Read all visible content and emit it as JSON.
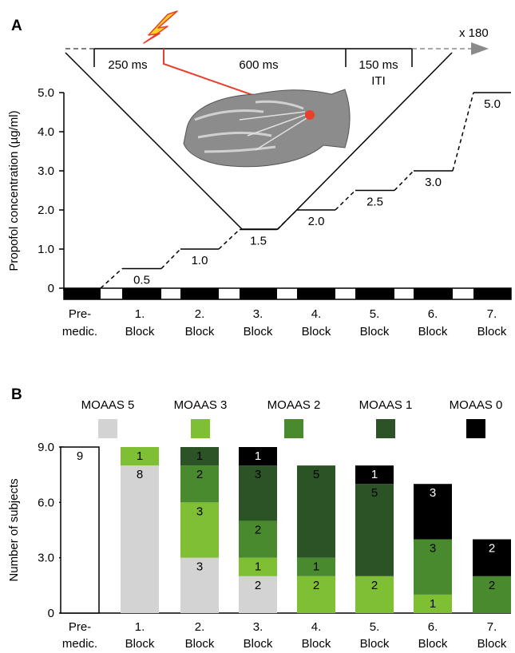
{
  "panel_a": {
    "label": "A",
    "trial": {
      "t1": "250 ms",
      "t2": "600 ms",
      "t3": "150 ms",
      "iti": "ITI",
      "repeat": "x 180"
    }
  },
  "panel_b": {
    "label": "B"
  },
  "colors": {
    "moaas5": "#d3d3d3",
    "moaas3": "#7fbf33",
    "moaas2": "#4a8a2f",
    "moaas1": "#2b5326",
    "moaas0": "#000000",
    "laser": "#e8402b",
    "arrow": "#8a8a8a"
  },
  "chart_data": [
    {
      "type": "line",
      "ylabel": "Propofol concentration (µg/ml)",
      "ylim": [
        0,
        5
      ],
      "yticks": [
        "0",
        "1.0",
        "2.0",
        "3.0",
        "4.0",
        "5.0"
      ],
      "categories": [
        [
          "Pre-",
          "medic."
        ],
        [
          "1.",
          "Block"
        ],
        [
          "2.",
          "Block"
        ],
        [
          "3.",
          "Block"
        ],
        [
          "4.",
          "Block"
        ],
        [
          "5.",
          "Block"
        ],
        [
          "6.",
          "Block"
        ],
        [
          "7.",
          "Block"
        ]
      ],
      "steps": [
        {
          "block": 1,
          "value": 0.5,
          "label": "0.5"
        },
        {
          "block": 2,
          "value": 1.0,
          "label": "1.0"
        },
        {
          "block": 3,
          "value": 1.5,
          "label": "1.5"
        },
        {
          "block": 4,
          "value": 2.0,
          "label": "2.0"
        },
        {
          "block": 5,
          "value": 2.5,
          "label": "2.5"
        },
        {
          "block": 6,
          "value": 3.0,
          "label": "3.0"
        },
        {
          "block": 7,
          "value": 5.0,
          "label": "5.0"
        }
      ]
    },
    {
      "type": "bar",
      "stacked": true,
      "ylabel": "Number of subjects",
      "ylim": [
        0,
        9
      ],
      "yticks": [
        "0",
        "3.0",
        "6.0",
        "9.0"
      ],
      "legend": [
        "MOAAS 5",
        "MOAAS 3",
        "MOAAS 2",
        "MOAAS 1",
        "MOAAS 0"
      ],
      "categories": [
        [
          "Pre-",
          "medic."
        ],
        [
          "1.",
          "Block"
        ],
        [
          "2.",
          "Block"
        ],
        [
          "3.",
          "Block"
        ],
        [
          "4.",
          "Block"
        ],
        [
          "5.",
          "Block"
        ],
        [
          "6.",
          "Block"
        ],
        [
          "7.",
          "Block"
        ]
      ],
      "series": [
        {
          "name": "MOAAS 5",
          "values": [
            9,
            8,
            3,
            2,
            0,
            0,
            0,
            0
          ]
        },
        {
          "name": "MOAAS 3",
          "values": [
            0,
            1,
            3,
            1,
            2,
            2,
            1,
            0
          ]
        },
        {
          "name": "MOAAS 2",
          "values": [
            0,
            0,
            2,
            2,
            1,
            0,
            3,
            2
          ]
        },
        {
          "name": "MOAAS 1",
          "values": [
            0,
            0,
            1,
            3,
            5,
            5,
            0,
            0
          ]
        },
        {
          "name": "MOAAS 0",
          "values": [
            0,
            0,
            0,
            1,
            0,
            1,
            3,
            2
          ]
        }
      ]
    }
  ]
}
